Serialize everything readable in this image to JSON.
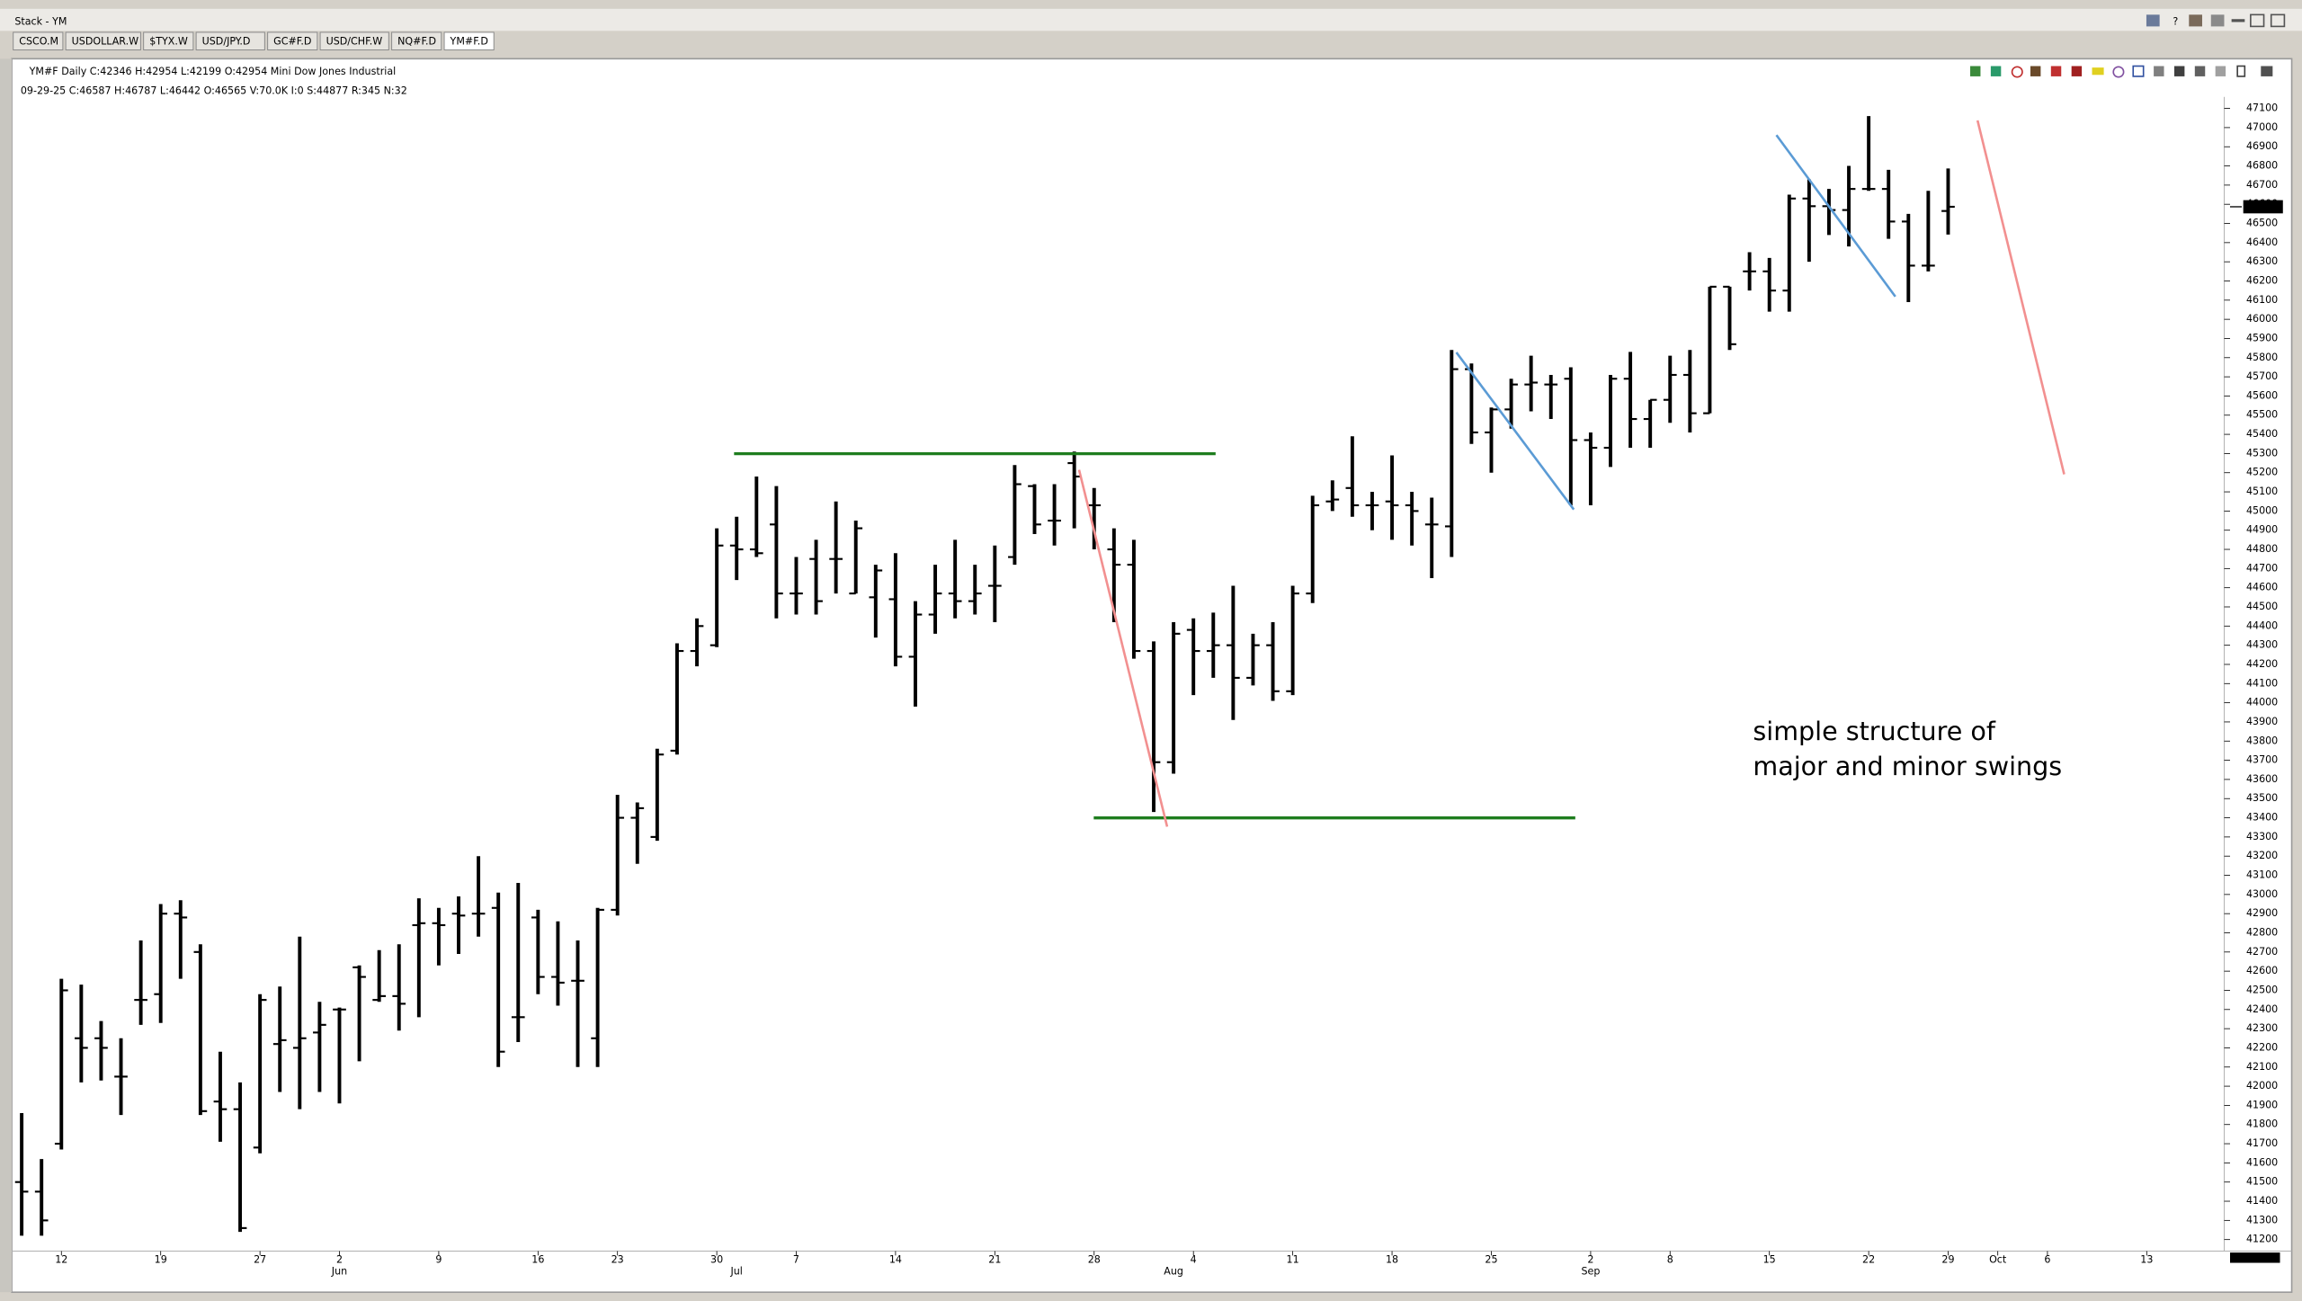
{
  "window": {
    "title": "Stack - YM",
    "tabs": [
      "CSCO.M",
      "USDOLLAR.W",
      "$TYX.W",
      "USD/JPY.D",
      "GC#F.D",
      "USD/CHF.W",
      "NQ#F.D",
      "YM#F.D"
    ]
  },
  "chart_data": {
    "type": "ohlc",
    "title": "YM#F  Daily C:42346 H:42954 L:42199 O:42954 Mini Dow Jones Industrial",
    "subtitle": "09-29-25  C:46587  H:46787  L:46442  O:46565  V:70.0K  I:0  S:44877  R:345  N:32",
    "annotations": [
      "simple structure of",
      "major and minor swings"
    ],
    "color": "#000000",
    "last_price": 46587,
    "xlim": [
      -0.5,
      110.9
    ],
    "xticks": [
      {
        "value": 2,
        "label": "12"
      },
      {
        "value": 7,
        "label": "19"
      },
      {
        "value": 12,
        "label": "27"
      },
      {
        "value": 16,
        "label": "2"
      },
      {
        "value": 21,
        "label": "9"
      },
      {
        "value": 26,
        "label": "16"
      },
      {
        "value": 30,
        "label": "23"
      },
      {
        "value": 35,
        "label": "30"
      },
      {
        "value": 39,
        "label": "7"
      },
      {
        "value": 44,
        "label": "14"
      },
      {
        "value": 49,
        "label": "21"
      },
      {
        "value": 54,
        "label": "28"
      },
      {
        "value": 59,
        "label": "4"
      },
      {
        "value": 64,
        "label": "11"
      },
      {
        "value": 69,
        "label": "18"
      },
      {
        "value": 74,
        "label": "25"
      },
      {
        "value": 79,
        "label": "2"
      },
      {
        "value": 83,
        "label": "8"
      },
      {
        "value": 88,
        "label": "15"
      },
      {
        "value": 93,
        "label": "22"
      },
      {
        "value": 97,
        "label": "29"
      },
      {
        "value": 99.5,
        "label": "Oct"
      },
      {
        "value": 102,
        "label": "6"
      },
      {
        "value": 107,
        "label": "13"
      }
    ],
    "xmonths": [
      {
        "value": 16,
        "label": "Jun"
      },
      {
        "value": 36,
        "label": "Jul"
      },
      {
        "value": 58,
        "label": "Aug"
      },
      {
        "value": 79,
        "label": "Sep"
      }
    ],
    "ylim": [
      41140,
      47160
    ],
    "yticks": [
      41200,
      41300,
      41400,
      41500,
      41600,
      41700,
      41800,
      41900,
      42000,
      42100,
      42200,
      42300,
      42400,
      42500,
      42600,
      42700,
      42800,
      42900,
      43000,
      43100,
      43200,
      43300,
      43400,
      43500,
      43600,
      43700,
      43800,
      43900,
      44000,
      44100,
      44200,
      44300,
      44400,
      44500,
      44600,
      44700,
      44800,
      44900,
      45000,
      45100,
      45200,
      45300,
      45400,
      45500,
      45600,
      45700,
      45800,
      45900,
      46000,
      46100,
      46200,
      46300,
      46400,
      46500,
      46600,
      46700,
      46800,
      46900,
      47000,
      47100
    ],
    "open": [
      41500,
      41450,
      41700,
      42250,
      42250,
      42050,
      42450,
      42480,
      42900,
      42700,
      41920,
      41880,
      41680,
      42220,
      42200,
      42280,
      42400,
      42620,
      42450,
      42470,
      42840,
      42850,
      42900,
      42900,
      42930,
      42360,
      42880,
      42570,
      42550,
      42250,
      42920,
      43400,
      43300,
      43750,
      44270,
      44300,
      44820,
      44800,
      44930,
      44570,
      44750,
      44750,
      44570,
      44550,
      44540,
      44240,
      44460,
      44570,
      44530,
      44610,
      44760,
      45130,
      44950,
      45250,
      45030,
      44800,
      44720,
      44270,
      43690,
      44380,
      44270,
      44300,
      44130,
      44300,
      44060,
      44570,
      45050,
      45120,
      45030,
      45050,
      45030,
      44930,
      44920,
      45740,
      45410,
      45530,
      45660,
      45660,
      45690,
      45370,
      45330,
      45690,
      45480,
      45580,
      45710,
      45510,
      46170,
      46250,
      46250,
      46150,
      46630,
      46590,
      46570,
      46680,
      46680,
      46510,
      46280,
      46565
    ],
    "high": [
      41860,
      41620,
      42560,
      42530,
      42340,
      42250,
      42760,
      42950,
      42970,
      42740,
      42180,
      42020,
      42480,
      42520,
      42780,
      42440,
      42410,
      42630,
      42710,
      42740,
      42980,
      42930,
      42990,
      43200,
      43010,
      43060,
      42920,
      42860,
      42760,
      42930,
      43520,
      43480,
      43760,
      44310,
      44440,
      44910,
      44970,
      45180,
      45130,
      44760,
      44850,
      45050,
      44950,
      44720,
      44780,
      44530,
      44720,
      44850,
      44720,
      44820,
      45240,
      45140,
      45140,
      45310,
      45120,
      44910,
      44850,
      44320,
      44420,
      44440,
      44470,
      44610,
      44360,
      44420,
      44610,
      45080,
      45160,
      45390,
      45100,
      45290,
      45100,
      45070,
      45840,
      45770,
      45540,
      45690,
      45810,
      45710,
      45750,
      45410,
      45710,
      45830,
      45580,
      45810,
      45840,
      46170,
      46170,
      46350,
      46320,
      46650,
      46730,
      46680,
      46800,
      47060,
      46780,
      46550,
      46670,
      46787
    ],
    "low": [
      41220,
      41220,
      41670,
      42020,
      42030,
      41850,
      42320,
      42330,
      42560,
      41850,
      41710,
      41240,
      41650,
      41970,
      41880,
      41970,
      41910,
      42130,
      42440,
      42290,
      42360,
      42630,
      42690,
      42780,
      42100,
      42230,
      42480,
      42420,
      42100,
      42100,
      42890,
      43160,
      43280,
      43730,
      44190,
      44290,
      44640,
      44760,
      44440,
      44460,
      44460,
      44570,
      44570,
      44340,
      44190,
      43980,
      44360,
      44440,
      44460,
      44420,
      44720,
      44880,
      44820,
      44910,
      44800,
      44420,
      44230,
      43430,
      43630,
      44040,
      44130,
      43910,
      44090,
      44010,
      44040,
      44520,
      45000,
      44970,
      44900,
      44850,
      44820,
      44650,
      44760,
      45350,
      45200,
      45430,
      45520,
      45480,
      45030,
      45030,
      45230,
      45330,
      45330,
      45460,
      45410,
      45510,
      45840,
      46150,
      46040,
      46040,
      46300,
      46440,
      46380,
      46670,
      46420,
      46090,
      46250,
      46442
    ],
    "close": [
      41450,
      41300,
      42500,
      42200,
      42200,
      42050,
      42450,
      42900,
      42880,
      41870,
      41880,
      41260,
      42450,
      42240,
      42250,
      42320,
      42400,
      42570,
      42470,
      42430,
      42850,
      42840,
      42890,
      42900,
      42180,
      42360,
      42570,
      42540,
      42550,
      42920,
      43400,
      43450,
      43730,
      44270,
      44400,
      44820,
      44800,
      44780,
      44570,
      44570,
      44530,
      44750,
      44910,
      44690,
      44240,
      44460,
      44570,
      44530,
      44570,
      44610,
      45140,
      44930,
      44950,
      45180,
      45030,
      44720,
      44270,
      43690,
      44360,
      44270,
      44300,
      44130,
      44300,
      44060,
      44570,
      45030,
      45060,
      45030,
      45030,
      45030,
      45000,
      44930,
      45740,
      45410,
      45530,
      45660,
      45670,
      45660,
      45370,
      45330,
      45690,
      45480,
      45580,
      45710,
      45510,
      46170,
      45870,
      46250,
      46150,
      46630,
      46590,
      46570,
      46680,
      46680,
      46510,
      46280,
      46280,
      46587
    ]
  }
}
